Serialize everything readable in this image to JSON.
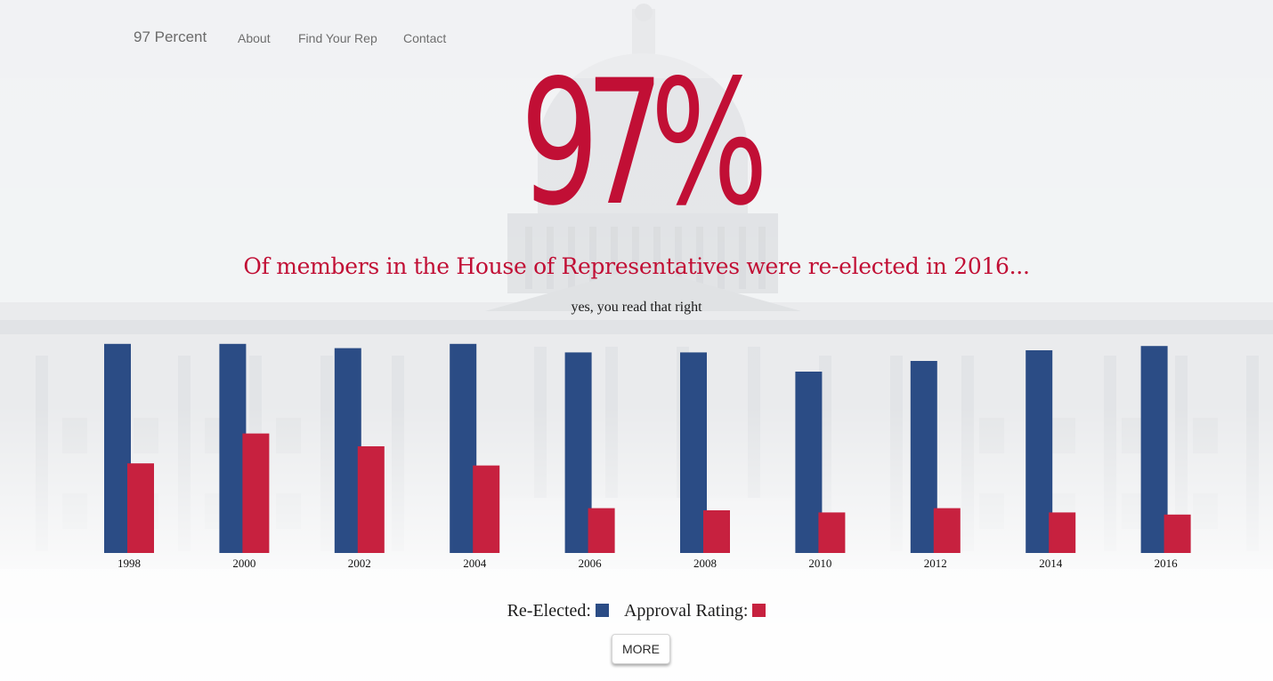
{
  "nav": {
    "brand": "97 Percent",
    "links": [
      "About",
      "Find Your Rep",
      "Contact"
    ]
  },
  "hero": {
    "big_number": "97%",
    "subtitle": "Of members in the House of Representatives were re-elected in 2016...",
    "tagline": "yes, you read that right"
  },
  "colors": {
    "accent_red": "#c10f35",
    "series_blue": "#2b4c85",
    "series_red": "#c7213f"
  },
  "chart_data": {
    "type": "bar",
    "categories": [
      "1998",
      "2000",
      "2002",
      "2004",
      "2006",
      "2008",
      "2010",
      "2012",
      "2014",
      "2016"
    ],
    "series": [
      {
        "name": "Re-Elected",
        "color": "#2b4c85",
        "values": [
          98,
          98,
          96,
          98,
          94,
          94,
          85,
          90,
          95,
          97
        ]
      },
      {
        "name": "Approval Rating",
        "color": "#c7213f",
        "values": [
          42,
          56,
          50,
          41,
          21,
          20,
          19,
          21,
          19,
          18
        ]
      }
    ],
    "ylim": [
      0,
      100
    ],
    "grid": false,
    "legend": "bottom-center"
  },
  "legend": {
    "re_elected_label": "Re-Elected:",
    "approval_label": "Approval Rating:"
  },
  "more_button": "MORE"
}
